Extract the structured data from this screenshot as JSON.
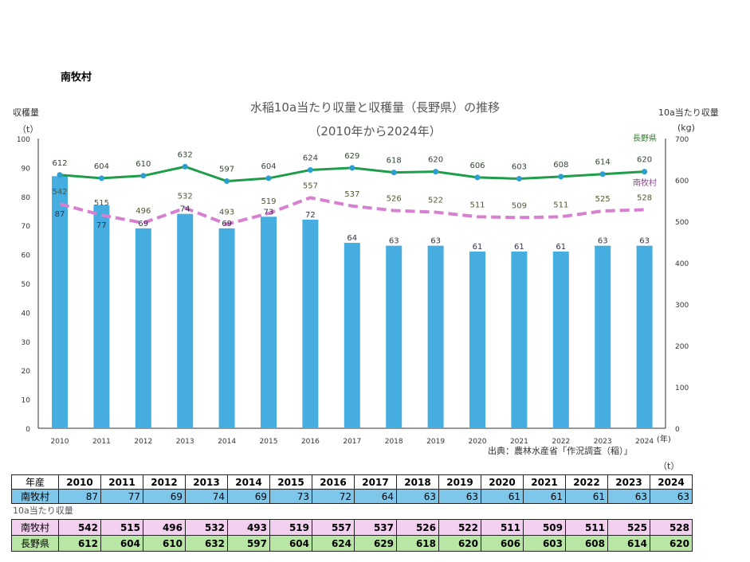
{
  "heading": "南牧村",
  "chart_data": {
    "type": "bar+line",
    "title": "水稲10a当たり収量と収穫量（長野県）の推移",
    "subtitle": "（2010年から2024年）",
    "ylabel_left": "収穫量",
    "ylabel_left_unit": "（t）",
    "ylabel_right": "10a当たり収量",
    "ylabel_right_unit": "(kg)",
    "xlabel_unit": "(年)",
    "source": "出典：農林水産省「作況調査（稲）」",
    "ylim_left": [
      0,
      100
    ],
    "yticks_left": [
      0,
      10,
      20,
      30,
      40,
      50,
      60,
      70,
      80,
      90,
      100
    ],
    "ylim_right": [
      0,
      700
    ],
    "yticks_right": [
      0,
      100,
      200,
      300,
      400,
      500,
      600,
      700
    ],
    "categories": [
      "2010",
      "2011",
      "2012",
      "2013",
      "2014",
      "2015",
      "2016",
      "2017",
      "2018",
      "2019",
      "2020",
      "2021",
      "2022",
      "2023",
      "2024"
    ],
    "series": [
      {
        "name": "収穫量",
        "type": "bar",
        "axis": "left",
        "color": "#45ade0",
        "values": [
          87,
          77,
          69,
          74,
          69,
          73,
          72,
          64,
          63,
          63,
          61,
          61,
          61,
          63,
          63
        ]
      },
      {
        "name": "南牧村",
        "type": "line-dashed",
        "axis": "right",
        "color": "#d77fd0",
        "values": [
          542,
          515,
          496,
          532,
          493,
          519,
          557,
          537,
          526,
          522,
          511,
          509,
          511,
          525,
          528
        ]
      },
      {
        "name": "長野県",
        "type": "line",
        "axis": "right",
        "color": "#1f9d4a",
        "values": [
          612,
          604,
          610,
          632,
          597,
          604,
          624,
          629,
          618,
          620,
          606,
          603,
          608,
          614,
          620
        ]
      }
    ]
  },
  "table": {
    "unit": "（t）",
    "header_label": "年産",
    "harvest_label": "南牧村",
    "yield_caption": "10a当たり収量",
    "yield_rows": [
      {
        "label": "南牧村"
      },
      {
        "label": "長野県"
      }
    ]
  }
}
